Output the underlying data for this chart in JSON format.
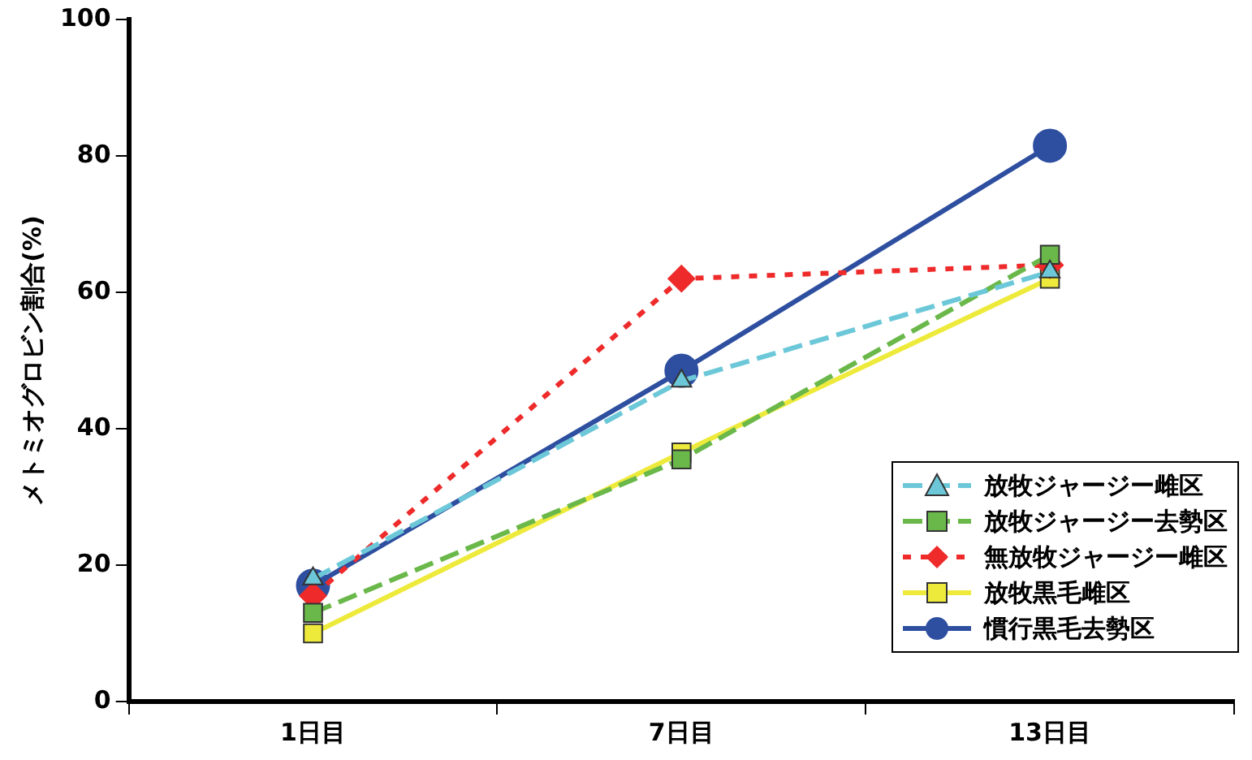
{
  "chart_data": {
    "type": "line",
    "ylabel": "メトミオグロビン割合(%)",
    "categories": [
      "1日目",
      "7日目",
      "13日目"
    ],
    "ylim": [
      0,
      100
    ],
    "yticks": [
      0,
      20,
      40,
      60,
      80,
      100
    ],
    "grid": false,
    "legend": "bottom right",
    "series": [
      {
        "name": "放牧ジャージー雌区",
        "color": "#6cc8d8",
        "values": [
          18,
          47,
          63
        ],
        "marker": "triangle",
        "line_style": "dashed"
      },
      {
        "name": "放牧ジャージー去勢区",
        "color": "#6ab84a",
        "values": [
          13,
          35.5,
          65.5
        ],
        "marker": "square",
        "line_style": "dashed"
      },
      {
        "name": "無放牧ジャージー雌区",
        "color": "#ee2a2a",
        "values": [
          15.5,
          62,
          64
        ],
        "marker": "diamond",
        "line_style": "dotted"
      },
      {
        "name": "放牧黒毛雌区",
        "color": "#eeea3c",
        "values": [
          10,
          36.5,
          62
        ],
        "marker": "square",
        "line_style": "solid"
      },
      {
        "name": "慣行黒毛去勢区",
        "color": "#2e4fa0",
        "values": [
          17,
          48.5,
          81.5
        ],
        "marker": "circle",
        "line_style": "solid"
      }
    ]
  }
}
